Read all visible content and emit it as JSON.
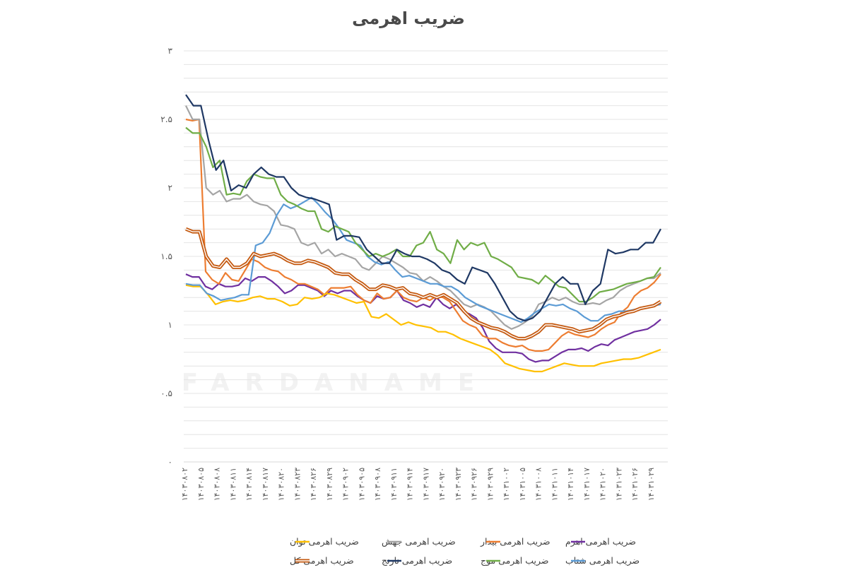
{
  "chart_data": {
    "type": "line",
    "title": "ضریب اهرمی",
    "watermark": "FARDANAME",
    "ylim": [
      0,
      3
    ],
    "yticks": [
      "۰",
      "۰.۵",
      "۱",
      "۱.۵",
      "۲",
      "۲.۵",
      "۳"
    ],
    "y_tick_values": [
      0,
      0.5,
      1,
      1.5,
      2,
      2.5,
      3
    ],
    "grid": true,
    "legend_position": "bottom",
    "x_tick_labels": [
      "۱۴۰۳۰۸۰۲",
      "۱۴۰۳۰۸۰۵",
      "۱۴۰۳۰۸۰۸",
      "۱۴۰۳۰۸۱۱",
      "۱۴۰۳۰۸۱۴",
      "۱۴۰۳۰۸۱۷",
      "۱۴۰۳۰۸۲۰",
      "۱۴۰۳۰۸۲۳",
      "۱۴۰۳۰۸۲۶",
      "۱۴۰۳۰۸۲۹",
      "۱۴۰۳۰۹۰۲",
      "۱۴۰۳۰۹۰۵",
      "۱۴۰۳۰۹۰۸",
      "۱۴۰۳۰۹۱۱",
      "۱۴۰۳۰۹۱۴",
      "۱۴۰۳۰۹۱۷",
      "۱۴۰۳۰۹۲۰",
      "۱۴۰۳۰۹۲۳",
      "۱۴۰۳۰۹۲۶",
      "۱۴۰۳۰۹۲۹",
      "۱۴۰۳۱۰۰۲",
      "۱۴۰۳۱۰۰۵",
      "۱۴۰۳۱۰۰۸",
      "۱۴۰۳۱۰۱۱",
      "۱۴۰۳۱۰۱۴",
      "۱۴۰۳۱۰۱۷",
      "۱۴۰۳۱۰۲۰",
      "۱۴۰۳۱۰۲۳",
      "۱۴۰۳۱۰۲۶",
      "۱۴۰۳۱۰۲۹"
    ],
    "series": [
      {
        "name": "ضریب اهرمی اهرم",
        "color": "#7030a0",
        "style": "plain",
        "values": [
          1.37,
          1.35,
          1.35,
          1.28,
          1.26,
          1.3,
          1.28,
          1.28,
          1.29,
          1.34,
          1.32,
          1.35,
          1.35,
          1.32,
          1.28,
          1.23,
          1.25,
          1.29,
          1.29,
          1.27,
          1.25,
          1.21,
          1.25,
          1.23,
          1.25,
          1.25,
          1.21,
          1.18,
          1.16,
          1.21,
          1.19,
          1.2,
          1.25,
          1.18,
          1.16,
          1.13,
          1.15,
          1.13,
          1.2,
          1.15,
          1.12,
          1.15,
          1.1,
          1.08,
          1.05,
          0.98,
          0.88,
          0.83,
          0.8,
          0.8,
          0.8,
          0.79,
          0.75,
          0.73,
          0.74,
          0.74,
          0.77,
          0.8,
          0.82,
          0.82,
          0.83,
          0.81,
          0.84,
          0.86,
          0.85,
          0.89,
          0.91,
          0.93,
          0.95,
          0.96,
          0.97,
          1.0,
          1.04
        ]
      },
      {
        "name": "ضریب اهرمی بیدار",
        "color": "#ed7d31",
        "style": "plain",
        "values": [
          2.5,
          2.49,
          2.5,
          1.39,
          1.33,
          1.3,
          1.38,
          1.33,
          1.32,
          1.4,
          1.48,
          1.46,
          1.42,
          1.4,
          1.39,
          1.35,
          1.33,
          1.3,
          1.3,
          1.28,
          1.26,
          1.22,
          1.27,
          1.27,
          1.27,
          1.28,
          1.22,
          1.18,
          1.16,
          1.23,
          1.19,
          1.2,
          1.25,
          1.2,
          1.18,
          1.17,
          1.2,
          1.18,
          1.21,
          1.2,
          1.17,
          1.1,
          1.03,
          1.0,
          0.98,
          0.92,
          0.9,
          0.9,
          0.87,
          0.85,
          0.84,
          0.85,
          0.82,
          0.81,
          0.81,
          0.82,
          0.87,
          0.92,
          0.95,
          0.93,
          0.92,
          0.91,
          0.93,
          0.97,
          1.0,
          1.02,
          1.09,
          1.13,
          1.21,
          1.25,
          1.27,
          1.31,
          1.37
        ]
      },
      {
        "name": "ضریب اهرمی جهش",
        "color": "#a5a5a5",
        "style": "plain",
        "values": [
          2.6,
          2.5,
          2.5,
          2.0,
          1.95,
          1.98,
          1.9,
          1.92,
          1.92,
          1.95,
          1.9,
          1.88,
          1.87,
          1.83,
          1.73,
          1.72,
          1.7,
          1.6,
          1.58,
          1.6,
          1.52,
          1.55,
          1.5,
          1.52,
          1.5,
          1.48,
          1.42,
          1.4,
          1.45,
          1.5,
          1.48,
          1.45,
          1.42,
          1.38,
          1.37,
          1.32,
          1.35,
          1.32,
          1.28,
          1.25,
          1.2,
          1.15,
          1.13,
          1.15,
          1.13,
          1.1,
          1.05,
          1.0,
          0.97,
          0.99,
          1.02,
          1.06,
          1.15,
          1.17,
          1.2,
          1.18,
          1.2,
          1.17,
          1.15,
          1.15,
          1.16,
          1.15,
          1.18,
          1.2,
          1.25,
          1.28,
          1.3,
          1.32,
          1.34,
          1.34,
          1.38
        ]
      },
      {
        "name": "ضریب اهرمی توان",
        "color": "#ffc000",
        "style": "plain",
        "values": [
          1.29,
          1.28,
          1.28,
          1.22,
          1.15,
          1.17,
          1.18,
          1.17,
          1.18,
          1.2,
          1.21,
          1.19,
          1.19,
          1.17,
          1.14,
          1.15,
          1.2,
          1.19,
          1.2,
          1.23,
          1.22,
          1.2,
          1.18,
          1.16,
          1.17,
          1.06,
          1.05,
          1.08,
          1.04,
          1.0,
          1.02,
          1.0,
          0.99,
          0.98,
          0.95,
          0.95,
          0.93,
          0.9,
          0.88,
          0.86,
          0.84,
          0.82,
          0.78,
          0.72,
          0.7,
          0.68,
          0.67,
          0.66,
          0.66,
          0.68,
          0.7,
          0.72,
          0.71,
          0.7,
          0.7,
          0.7,
          0.72,
          0.73,
          0.74,
          0.75,
          0.75,
          0.76,
          0.78,
          0.8,
          0.82
        ]
      },
      {
        "name": "ضریب اهرمی شتاب",
        "color": "#5b9bd5",
        "style": "plain",
        "values": [
          1.3,
          1.29,
          1.29,
          1.23,
          1.21,
          1.18,
          1.19,
          1.2,
          1.22,
          1.22,
          1.58,
          1.6,
          1.67,
          1.8,
          1.88,
          1.85,
          1.87,
          1.9,
          1.93,
          1.88,
          1.82,
          1.77,
          1.7,
          1.62,
          1.6,
          1.58,
          1.5,
          1.46,
          1.44,
          1.46,
          1.4,
          1.35,
          1.36,
          1.34,
          1.32,
          1.3,
          1.3,
          1.28,
          1.28,
          1.25,
          1.2,
          1.17,
          1.14,
          1.12,
          1.1,
          1.08,
          1.06,
          1.04,
          1.02,
          1.05,
          1.09,
          1.12,
          1.15,
          1.14,
          1.15,
          1.12,
          1.1,
          1.06,
          1.03,
          1.03,
          1.07,
          1.08,
          1.1,
          1.1,
          1.11,
          1.12,
          1.13,
          1.14,
          1.15
        ]
      },
      {
        "name": "ضریب اهرمی موج",
        "color": "#70ad47",
        "style": "plain",
        "values": [
          2.44,
          2.4,
          2.4,
          2.3,
          2.15,
          2.2,
          1.95,
          1.96,
          1.95,
          2.05,
          2.1,
          2.08,
          2.07,
          2.07,
          1.95,
          1.9,
          1.88,
          1.85,
          1.83,
          1.83,
          1.7,
          1.68,
          1.72,
          1.7,
          1.68,
          1.6,
          1.55,
          1.5,
          1.52,
          1.5,
          1.52,
          1.55,
          1.5,
          1.5,
          1.58,
          1.6,
          1.68,
          1.55,
          1.52,
          1.45,
          1.62,
          1.55,
          1.6,
          1.58,
          1.6,
          1.5,
          1.48,
          1.45,
          1.42,
          1.35,
          1.34,
          1.33,
          1.3,
          1.36,
          1.32,
          1.28,
          1.27,
          1.22,
          1.17,
          1.17,
          1.2,
          1.24,
          1.25,
          1.26,
          1.28,
          1.3,
          1.31,
          1.32,
          1.34,
          1.35,
          1.42
        ]
      },
      {
        "name": "ضریب اهرمی نارنج",
        "color": "#1f3864",
        "style": "plain",
        "values": [
          2.68,
          2.6,
          2.6,
          2.35,
          2.13,
          2.2,
          1.98,
          2.02,
          2.0,
          2.1,
          2.15,
          2.1,
          2.08,
          2.08,
          2.0,
          1.95,
          1.93,
          1.92,
          1.9,
          1.88,
          1.62,
          1.65,
          1.65,
          1.64,
          1.55,
          1.5,
          1.45,
          1.45,
          1.55,
          1.52,
          1.5,
          1.5,
          1.48,
          1.45,
          1.4,
          1.38,
          1.33,
          1.3,
          1.42,
          1.4,
          1.38,
          1.3,
          1.2,
          1.1,
          1.05,
          1.03,
          1.05,
          1.1,
          1.2,
          1.3,
          1.35,
          1.3,
          1.3,
          1.15,
          1.25,
          1.3,
          1.55,
          1.52,
          1.53,
          1.55,
          1.55,
          1.6,
          1.6,
          1.7
        ]
      },
      {
        "name": "ضریب اهرمی کل",
        "color": "#c55a11",
        "style": "double",
        "values": [
          1.7,
          1.68,
          1.68,
          1.5,
          1.43,
          1.42,
          1.48,
          1.42,
          1.42,
          1.45,
          1.52,
          1.5,
          1.51,
          1.52,
          1.5,
          1.47,
          1.45,
          1.45,
          1.47,
          1.46,
          1.44,
          1.42,
          1.38,
          1.37,
          1.37,
          1.33,
          1.3,
          1.26,
          1.26,
          1.29,
          1.28,
          1.26,
          1.27,
          1.23,
          1.22,
          1.2,
          1.22,
          1.2,
          1.22,
          1.19,
          1.16,
          1.1,
          1.05,
          1.02,
          1.0,
          0.98,
          0.97,
          0.95,
          0.92,
          0.9,
          0.9,
          0.92,
          0.95,
          1.0,
          1.0,
          0.99,
          0.98,
          0.97,
          0.95,
          0.96,
          0.97,
          1.0,
          1.04,
          1.06,
          1.07,
          1.09,
          1.1,
          1.12,
          1.13,
          1.14,
          1.17
        ]
      }
    ]
  }
}
